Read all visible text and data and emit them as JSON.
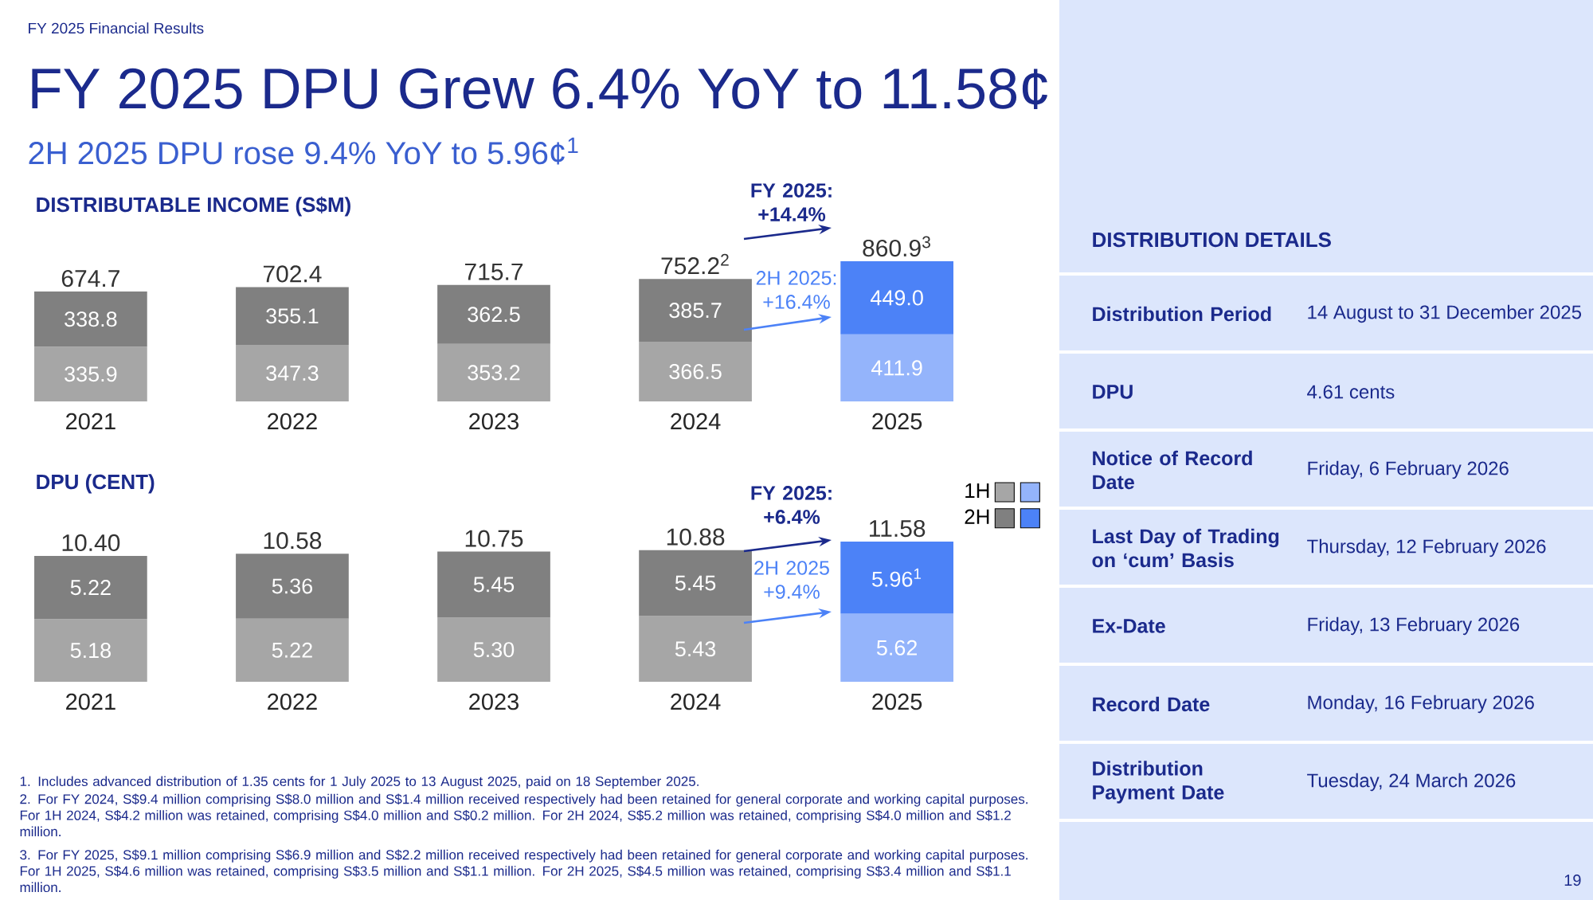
{
  "chart_data": [
    {
      "type": "other",
      "title": "FY 2025 DPU Grew 6.4% YoY to 11.58¢",
      "subtitle": "2H 2025 DPU rose 9.4% YoY to 5.96¢$^{1}$",
      "annotations": [
        "FY 2025 Financial Results",
        "1. Includes advanced distribution of 1.35 cents for 1 July 2025 to 13 August 2025, paid on 18 September 2025.",
        "2. For FY 2024, S$9.4 million comprising S$8.0 million and S$1.4 million received respectively had been retained for general corporate and working capital purposes. For 1H 2024, S$4.2 million was retained, comprising S$4.0 million and S$0.2 million. For 2H 2024, S$5.2 million was retained, comprising S$4.0 million and S$1.2 million.",
        "3. For FY 2025, S$9.1 million comprising S$6.9 million and S$2.2 million received respectively had been retained for general corporate and working capital purposes. For 1H 2025, S$4.6 million was retained, comprising S$3.5 million and S$1.1 million. For 2H 2025, S$4.5 million was retained, comprising S$3.4 million and S$1.1 million.",
        "19"
      ]
    },
    {
      "type": "bar",
      "title": "DISTRIBUTABLE INCOME (S$M)",
      "categories": [
        "2021",
        "2022",
        "2023",
        "2024",
        "2025"
      ],
      "stacked": true,
      "tick_labels": "x",
      "series": [
        {
          "colors": [
            "#a6a6a6",
            "#a6a6a6",
            "#a6a6a6",
            "#a6a6a6",
            "#94b4fb"
          ],
          "values": [
            335.9,
            347.3,
            353.2,
            366.5,
            411.9
          ],
          "value_labels": [
            "335.9",
            "347.3",
            "353.2",
            "366.5",
            "411.9"
          ]
        },
        {
          "colors": [
            "#808080",
            "#808080",
            "#808080",
            "#808080",
            "#4c82f7"
          ],
          "values": [
            338.8,
            355.1,
            362.5,
            385.7,
            449.0
          ],
          "value_labels": [
            "338.8",
            "355.1",
            "362.5",
            "385.7",
            "449.0"
          ]
        }
      ],
      "totals": [
        "674.7",
        "702.4",
        "715.7",
        "752.2$^{2}$",
        "860.9$^{3}$"
      ],
      "annotations": [
        "FY 2025: +14.4%",
        "2H 2025: +16.4%"
      ]
    },
    {
      "type": "bar",
      "title": "DPU (CENT)",
      "categories": [
        "2021",
        "2022",
        "2023",
        "2024",
        "2025"
      ],
      "stacked": true,
      "tick_labels": "x",
      "legend": "top right",
      "series": [
        {
          "name": "1H",
          "colors": [
            "#a6a6a6",
            "#a6a6a6",
            "#a6a6a6",
            "#a6a6a6",
            "#94b4fb"
          ],
          "values": [
            5.18,
            5.22,
            5.3,
            5.43,
            5.62
          ],
          "value_labels": [
            "5.18",
            "5.22",
            "5.30",
            "5.43",
            "5.62"
          ]
        },
        {
          "name": "2H",
          "colors": [
            "#808080",
            "#808080",
            "#808080",
            "#808080",
            "#4c82f7"
          ],
          "values": [
            5.22,
            5.36,
            5.45,
            5.45,
            5.96
          ],
          "value_labels": [
            "5.22",
            "5.36",
            "5.45",
            "5.45",
            "5.96$^{1}$"
          ]
        }
      ],
      "totals": [
        "10.40",
        "10.58",
        "10.75",
        "10.88",
        "11.58"
      ],
      "annotations": [
        "FY 2025: +6.4%",
        "2H 2025 +9.4%"
      ]
    },
    {
      "type": "other",
      "title": "DISTRIBUTION DETAILS",
      "annotations": [
        "Distribution Period",
        "14 August to 31 December 2025",
        "DPU",
        "4.61 cents",
        "Notice of Record Date",
        "Friday, 6 February 2026",
        "Last Day of Trading on ‘cum’ Basis",
        "Thursday, 12 February 2026",
        "Ex-Date",
        "Friday, 13 February 2026",
        "Record Date",
        "Monday, 16 February 2026",
        "Distribution Payment Date",
        "Tuesday, 24 March 2026"
      ]
    }
  ]
}
